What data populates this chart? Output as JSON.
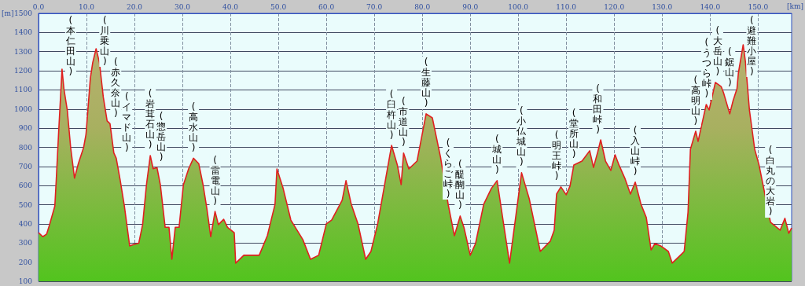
{
  "chart_data": {
    "type": "area",
    "xlabel": "[km]",
    "ylabel": "[m]",
    "x": [
      0,
      0.9,
      1.7,
      2.3,
      3.4,
      3.7,
      4.2,
      4.9,
      5.3,
      6.0,
      6.7,
      7.5,
      8.3,
      9.4,
      9.9,
      10.8,
      11.3,
      12.0,
      12.7,
      13.5,
      14.3,
      14.9,
      15.7,
      16.2,
      17.0,
      17.9,
      19.0,
      19.8,
      20.9,
      21.7,
      22.5,
      23.3,
      23.9,
      24.7,
      25.4,
      26.4,
      27.2,
      27.8,
      28.5,
      29.3,
      30.2,
      31.3,
      32.3,
      33.4,
      34.3,
      35.1,
      35.9,
      36.8,
      37.5,
      38.6,
      39.4,
      40.8,
      41.1,
      42.8,
      46.0,
      47.7,
      49.3,
      49.7,
      51.0,
      52.6,
      55.1,
      56.7,
      58.4,
      60.0,
      61.1,
      63.3,
      64.1,
      65.2,
      66.6,
      68.2,
      69.3,
      70.7,
      72.3,
      73.6,
      74.8,
      75.6,
      76.1,
      77.2,
      78.9,
      79.7,
      80.8,
      82.1,
      83.8,
      85.4,
      86.7,
      87.9,
      88.7,
      90.0,
      91.1,
      92.8,
      94.4,
      95.6,
      96.9,
      98.2,
      100.7,
      102.3,
      104.6,
      106.7,
      107.5,
      108.0,
      108.9,
      110.0,
      110.8,
      111.6,
      113.3,
      114.9,
      115.7,
      116.6,
      117.2,
      118.2,
      119.3,
      120.2,
      121.0,
      122.3,
      123.4,
      124.4,
      125.6,
      126.7,
      127.7,
      128.5,
      129.7,
      131.3,
      132.1,
      133.8,
      134.6,
      135.4,
      135.9,
      137.0,
      137.5,
      139.2,
      139.8,
      141.1,
      142.3,
      142.8,
      144.1,
      144.8,
      145.6,
      145.9,
      146.9,
      147.4,
      148.2,
      149.3,
      150.2,
      152.6,
      154.6,
      155.6,
      156.4,
      157.0
    ],
    "series": [
      {
        "color": "#e02020",
        "values": [
          354,
          333,
          347,
          396,
          493,
          632,
          882,
          1208,
          1104,
          993,
          799,
          639,
          715,
          799,
          868,
          1160,
          1243,
          1315,
          1243,
          1063,
          938,
          924,
          771,
          743,
          632,
          493,
          285,
          292,
          299,
          396,
          604,
          757,
          688,
          694,
          604,
          382,
          382,
          215,
          382,
          382,
          604,
          688,
          743,
          715,
          604,
          479,
          333,
          465,
          396,
          424,
          382,
          354,
          195,
          236,
          236,
          338,
          502,
          687,
          585,
          420,
          318,
          215,
          236,
          400,
          420,
          523,
          626,
          502,
          400,
          215,
          256,
          400,
          626,
          810,
          708,
          605,
          770,
          687,
          728,
          831,
          975,
          954,
          749,
          502,
          338,
          441,
          380,
          236,
          297,
          502,
          585,
          626,
          408,
          195,
          667,
          531,
          256,
          310,
          367,
          556,
          593,
          552,
          597,
          708,
          728,
          782,
          695,
          778,
          839,
          728,
          679,
          761,
          708,
          634,
          556,
          618,
          502,
          433,
          264,
          297,
          285,
          256,
          195,
          236,
          256,
          461,
          790,
          884,
          831,
          1024,
          995,
          1139,
          1118,
          1085,
          975,
          1044,
          1106,
          1188,
          1336,
          1241,
          995,
          790,
          708,
          408,
          367,
          429,
          351,
          379
        ]
      }
    ],
    "xlim": [
      0,
      157
    ],
    "xticks": [
      {
        "value": 0,
        "label": "0.0"
      },
      {
        "value": 10,
        "label": "10.0"
      },
      {
        "value": 20,
        "label": "20.0"
      },
      {
        "value": 30,
        "label": "30.0"
      },
      {
        "value": 40,
        "label": "40.0"
      },
      {
        "value": 50,
        "label": "50.0"
      },
      {
        "value": 60,
        "label": "60.0"
      },
      {
        "value": 70,
        "label": "70.0"
      },
      {
        "value": 80,
        "label": "80.0"
      },
      {
        "value": 90,
        "label": "90.0"
      },
      {
        "value": 100,
        "label": "100.0"
      },
      {
        "value": 110,
        "label": "110.0"
      },
      {
        "value": 120,
        "label": "120.0"
      },
      {
        "value": 130,
        "label": "130.0"
      },
      {
        "value": 140,
        "label": "140.0"
      },
      {
        "value": 150,
        "label": "150.0"
      }
    ],
    "ylim": [
      100,
      1500
    ],
    "yticks": [
      100,
      200,
      300,
      400,
      500,
      600,
      700,
      800,
      900,
      1000,
      1100,
      1200,
      1300,
      1400,
      1500
    ],
    "grid": true,
    "annotations": [
      {
        "text": "(本仁田山)",
        "x": 4.9,
        "y": 1208
      },
      {
        "text": "(川乗山)",
        "x": 12.0,
        "y": 1315
      },
      {
        "text": "(赤久奈山)",
        "x": 14.9,
        "y": 924
      },
      {
        "text": "(イマド山)",
        "x": 16.2,
        "y": 743
      },
      {
        "text": "(岩茸石山)",
        "x": 23.3,
        "y": 757
      },
      {
        "text": "(惣岳山)",
        "x": 24.7,
        "y": 694
      },
      {
        "text": "(高水山)",
        "x": 32.3,
        "y": 743
      },
      {
        "text": "(雷電山)",
        "x": 36.8,
        "y": 465
      },
      {
        "text": "(臼杵山)",
        "x": 73.6,
        "y": 810
      },
      {
        "text": "(市道山)",
        "x": 76.1,
        "y": 770
      },
      {
        "text": "(生藤山)",
        "x": 80.8,
        "y": 975
      },
      {
        "text": "(くらご峠)",
        "x": 85.4,
        "y": 502
      },
      {
        "text": "(醍醐山)",
        "x": 87.9,
        "y": 441
      },
      {
        "text": "(城山)",
        "x": 95.6,
        "y": 626
      },
      {
        "text": "(小仏城山)",
        "x": 100.7,
        "y": 667
      },
      {
        "text": "(明王峠)",
        "x": 108.0,
        "y": 556
      },
      {
        "text": "(堂所山)",
        "x": 111.6,
        "y": 708
      },
      {
        "text": "(和田峠)",
        "x": 116.6,
        "y": 778
      },
      {
        "text": "(入山峠)",
        "x": 124.4,
        "y": 618
      },
      {
        "text": "(高明山)",
        "x": 137.0,
        "y": 884
      },
      {
        "text": "(うつら峠)",
        "x": 139.2,
        "y": 1024
      },
      {
        "text": "(大岳山)",
        "x": 141.1,
        "y": 1139
      },
      {
        "text": "(鋸山)",
        "x": 144.1,
        "y": 975
      },
      {
        "text": "(避難小屋)",
        "x": 146.9,
        "y": 1336
      },
      {
        "text": "(白丸の大岩)",
        "x": 152.6,
        "y": 408
      }
    ]
  }
}
